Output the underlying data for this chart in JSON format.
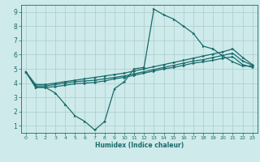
{
  "xlabel": "Humidex (Indice chaleur)",
  "ylabel": "",
  "xlim": [
    -0.5,
    23.5
  ],
  "ylim": [
    0.5,
    9.5
  ],
  "xticks": [
    0,
    1,
    2,
    3,
    4,
    5,
    6,
    7,
    8,
    9,
    10,
    11,
    12,
    13,
    14,
    15,
    16,
    17,
    18,
    19,
    20,
    21,
    22,
    23
  ],
  "yticks": [
    1,
    2,
    3,
    4,
    5,
    6,
    7,
    8,
    9
  ],
  "background_color": "#ceeaea",
  "grid_color": "#aacccc",
  "line_color": "#1a6b6b",
  "lines": [
    {
      "x": [
        0,
        1,
        2,
        3,
        4,
        5,
        6,
        7,
        8,
        9,
        10,
        11,
        12,
        13,
        14,
        15,
        16,
        17,
        18,
        19,
        20,
        21,
        22,
        23
      ],
      "y": [
        4.8,
        3.7,
        3.7,
        3.3,
        2.5,
        1.7,
        1.3,
        0.7,
        1.3,
        3.6,
        4.1,
        5.0,
        5.1,
        9.2,
        8.8,
        8.5,
        8.0,
        7.5,
        6.6,
        6.4,
        5.9,
        5.5,
        5.2,
        5.2
      ]
    },
    {
      "x": [
        0,
        1,
        2,
        3,
        4,
        5,
        6,
        7,
        8,
        9,
        10,
        11,
        12,
        13,
        14,
        15,
        16,
        17,
        18,
        19,
        20,
        21,
        22,
        23
      ],
      "y": [
        4.8,
        3.9,
        3.9,
        4.0,
        4.1,
        4.2,
        4.3,
        4.4,
        4.5,
        4.6,
        4.7,
        4.85,
        5.0,
        5.15,
        5.3,
        5.45,
        5.6,
        5.75,
        5.9,
        6.05,
        6.2,
        6.4,
        5.8,
        5.3
      ]
    },
    {
      "x": [
        0,
        1,
        2,
        3,
        4,
        5,
        6,
        7,
        8,
        9,
        10,
        11,
        12,
        13,
        14,
        15,
        16,
        17,
        18,
        19,
        20,
        21,
        22,
        23
      ],
      "y": [
        4.8,
        3.8,
        3.8,
        3.9,
        4.0,
        4.1,
        4.15,
        4.2,
        4.3,
        4.4,
        4.5,
        4.65,
        4.8,
        4.95,
        5.1,
        5.25,
        5.4,
        5.55,
        5.65,
        5.8,
        5.95,
        6.1,
        5.55,
        5.25
      ]
    },
    {
      "x": [
        0,
        1,
        2,
        3,
        4,
        5,
        6,
        7,
        8,
        9,
        10,
        11,
        12,
        13,
        14,
        15,
        16,
        17,
        18,
        19,
        20,
        21,
        22,
        23
      ],
      "y": [
        4.8,
        3.7,
        3.7,
        3.75,
        3.85,
        3.95,
        4.0,
        4.05,
        4.15,
        4.3,
        4.4,
        4.55,
        4.7,
        4.85,
        5.0,
        5.1,
        5.25,
        5.4,
        5.5,
        5.6,
        5.75,
        5.85,
        5.3,
        5.1
      ]
    }
  ]
}
